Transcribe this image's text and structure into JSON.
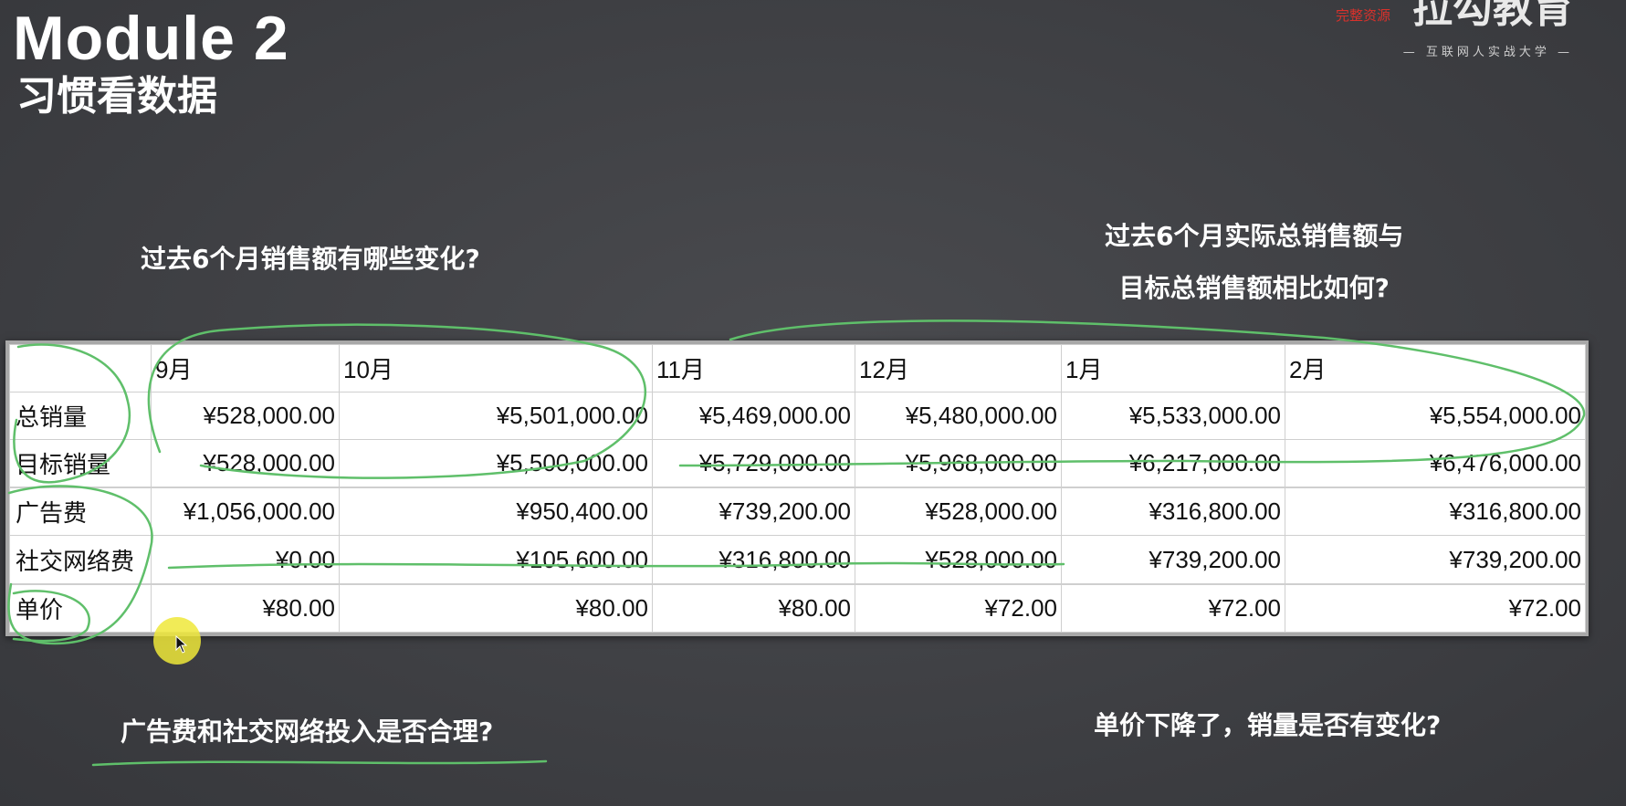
{
  "header": {
    "title": "Module 2",
    "subtitle": "习惯看数据"
  },
  "logo": {
    "main": "拉勾教育",
    "sub": "— 互联网人实战大学 —",
    "watermark": "完整资源"
  },
  "questions": {
    "q1": "过去6个月销售额有哪些变化?",
    "q2_line1": "过去6个月实际总销售额与",
    "q2_line2": "目标总销售额相比如何?",
    "q3": "广告费和社交网络投入是否合理?",
    "q4": "单价下降了，销量是否有变化?"
  },
  "table": {
    "months": [
      "9月",
      "10月",
      "11月",
      "12月",
      "1月",
      "2月"
    ],
    "rows": [
      {
        "label": "总销量",
        "values": [
          "¥528,000.00",
          "¥5,501,000.00",
          "¥5,469,000.00",
          "¥5,480,000.00",
          "¥5,533,000.00",
          "¥5,554,000.00"
        ]
      },
      {
        "label": "目标销量",
        "values": [
          "¥528,000.00",
          "¥5,500,000.00",
          "¥5,729,000.00",
          "¥5,968,000.00",
          "¥6,217,000.00",
          "¥6,476,000.00"
        ]
      },
      {
        "label": "",
        "values": [
          "",
          "",
          "",
          "",
          "",
          ""
        ]
      },
      {
        "label": "广告费",
        "values": [
          "¥1,056,000.00",
          "¥950,400.00",
          "¥739,200.00",
          "¥528,000.00",
          "¥316,800.00",
          "¥316,800.00"
        ]
      },
      {
        "label": "社交网络费",
        "values": [
          "¥0.00",
          "¥105,600.00",
          "¥316,800.00",
          "¥528,000.00",
          "¥739,200.00",
          "¥739,200.00"
        ]
      },
      {
        "label": "",
        "values": [
          "",
          "",
          "",
          "",
          "",
          ""
        ]
      },
      {
        "label": "单价",
        "values": [
          "¥80.00",
          "¥80.00",
          "¥80.00",
          "¥72.00",
          "¥72.00",
          "¥72.00"
        ]
      }
    ]
  },
  "colors": {
    "annotation": "#5fbf6a",
    "cursor": "#eee83a",
    "background": "#404145"
  }
}
